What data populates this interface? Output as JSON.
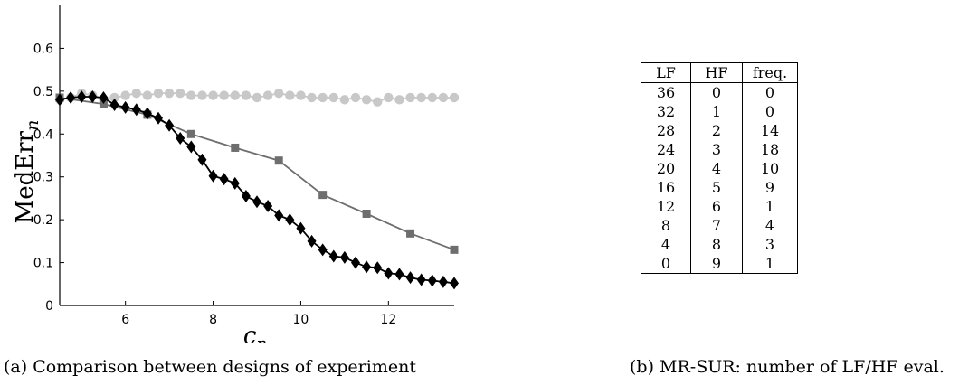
{
  "chart_data": {
    "type": "line",
    "xlabel": "c",
    "xlabel_sub": "n",
    "ylabel": "MedErr",
    "ylabel_sub": "n",
    "xlim": [
      4.5,
      13.5
    ],
    "ylim": [
      0,
      0.7
    ],
    "xticks": [
      6,
      8,
      10,
      12
    ],
    "yticks": [
      0,
      0.1,
      0.2,
      0.3,
      0.4,
      0.5,
      0.6
    ],
    "grid": false,
    "series": [
      {
        "color": "#c8c8c8",
        "marker": "circle",
        "x": [
          4.5,
          4.75,
          5,
          5.25,
          5.5,
          5.75,
          6,
          6.25,
          6.5,
          6.75,
          7,
          7.25,
          7.5,
          7.75,
          8,
          8.25,
          8.5,
          8.75,
          9,
          9.25,
          9.5,
          9.75,
          10,
          10.25,
          10.5,
          10.75,
          11,
          11.25,
          11.5,
          11.75,
          12,
          12.25,
          12.5,
          12.75,
          13,
          13.25,
          13.5
        ],
        "y": [
          0.48,
          0.485,
          0.495,
          0.49,
          0.48,
          0.485,
          0.49,
          0.495,
          0.49,
          0.495,
          0.495,
          0.495,
          0.49,
          0.49,
          0.49,
          0.49,
          0.49,
          0.49,
          0.485,
          0.49,
          0.495,
          0.49,
          0.49,
          0.485,
          0.485,
          0.485,
          0.48,
          0.485,
          0.48,
          0.475,
          0.485,
          0.48,
          0.485,
          0.485,
          0.485,
          0.485,
          0.485
        ]
      },
      {
        "color": "#6e6e6e",
        "marker": "square",
        "x": [
          4.5,
          5.5,
          6.5,
          7.5,
          8.5,
          9.5,
          10.5,
          11.5,
          12.5,
          13.5
        ],
        "y": [
          0.485,
          0.47,
          0.445,
          0.4,
          0.368,
          0.338,
          0.258,
          0.214,
          0.168,
          0.13
        ]
      },
      {
        "color": "#000000",
        "marker": "diamond",
        "x": [
          4.5,
          4.75,
          5,
          5.25,
          5.5,
          5.75,
          6,
          6.25,
          6.5,
          6.75,
          7,
          7.25,
          7.5,
          7.75,
          8,
          8.25,
          8.5,
          8.75,
          9,
          9.25,
          9.5,
          9.75,
          10,
          10.25,
          10.5,
          10.75,
          11,
          11.25,
          11.5,
          11.75,
          12,
          12.25,
          12.5,
          12.75,
          13,
          13.25,
          13.5
        ],
        "y": [
          0.48,
          0.485,
          0.487,
          0.487,
          0.485,
          0.468,
          0.462,
          0.457,
          0.448,
          0.437,
          0.42,
          0.39,
          0.37,
          0.34,
          0.302,
          0.295,
          0.285,
          0.255,
          0.242,
          0.232,
          0.21,
          0.2,
          0.18,
          0.15,
          0.13,
          0.115,
          0.112,
          0.1,
          0.09,
          0.088,
          0.075,
          0.073,
          0.065,
          0.06,
          0.058,
          0.055,
          0.052
        ]
      }
    ]
  },
  "captions": {
    "a": "(a) Comparison between designs of experiment",
    "b": "(b) MR-SUR: number of LF/HF eval."
  },
  "table": {
    "headers": [
      "LF",
      "HF",
      "freq."
    ],
    "rows": [
      [
        "36",
        "0",
        "0"
      ],
      [
        "32",
        "1",
        "0"
      ],
      [
        "28",
        "2",
        "14"
      ],
      [
        "24",
        "3",
        "18"
      ],
      [
        "20",
        "4",
        "10"
      ],
      [
        "16",
        "5",
        "9"
      ],
      [
        "12",
        "6",
        "1"
      ],
      [
        "8",
        "7",
        "4"
      ],
      [
        "4",
        "8",
        "3"
      ],
      [
        "0",
        "9",
        "1"
      ]
    ]
  }
}
